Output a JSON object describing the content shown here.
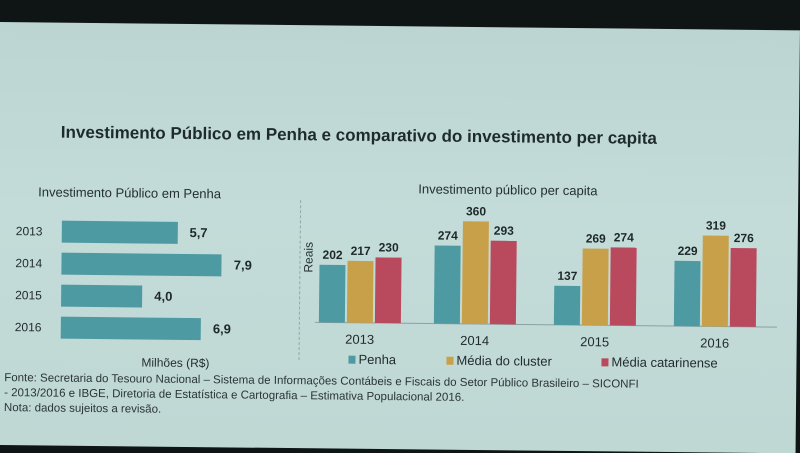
{
  "title": "Investimento Público em Penha e comparativo do investimento per capita",
  "footer": {
    "source_line1": "Fonte: Secretaria do Tesouro Nacional – Sistema de Informações Contábeis e Fiscais do Setor Público Brasileiro – SICONFI",
    "source_line2": "- 2013/2016 e IBGE, Diretoria de Estatística e Cartografia – Estimativa Populacional 2016.",
    "note": "Nota: dados sujeitos a revisão."
  },
  "colors": {
    "penha": "#4e9aa3",
    "cluster": "#c9a04a",
    "catarinense": "#b9495d"
  },
  "chart_data": [
    {
      "type": "bar",
      "orientation": "horizontal",
      "title": "Investimento Público em Penha",
      "xlabel": "Milhões (R$)",
      "categories": [
        "2013",
        "2014",
        "2015",
        "2016"
      ],
      "values": [
        5.7,
        7.9,
        4.0,
        6.9
      ],
      "value_labels": [
        "5,7",
        "7,9",
        "4,0",
        "6,9"
      ],
      "xlim": [
        0,
        10
      ]
    },
    {
      "type": "bar",
      "title": "Investimento público per capita",
      "ylabel": "Reais",
      "categories": [
        "2013",
        "2014",
        "2015",
        "2016"
      ],
      "series": [
        {
          "name": "Penha",
          "values": [
            202,
            274,
            137,
            229
          ]
        },
        {
          "name": "Média do cluster",
          "values": [
            217,
            360,
            269,
            319
          ]
        },
        {
          "name": "Média catarinense",
          "values": [
            230,
            293,
            274,
            276
          ]
        }
      ],
      "ylim": [
        0,
        380
      ],
      "legend": "bottom"
    }
  ]
}
